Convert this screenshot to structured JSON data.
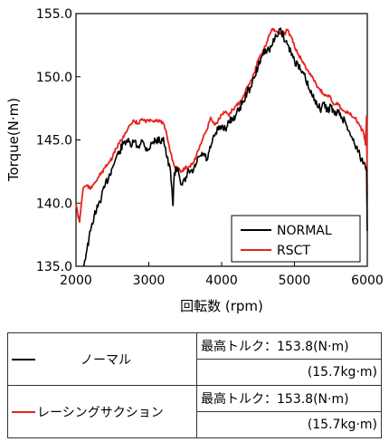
{
  "chart_data": {
    "type": "line",
    "xlabel": "回転数 (rpm)",
    "ylabel": "Torque(N·m)",
    "xlim": [
      2000,
      6000
    ],
    "ylim": [
      135.0,
      155.0
    ],
    "xticks": [
      "2000",
      "3000",
      "4000",
      "5000",
      "6000"
    ],
    "yticks": [
      "135.0",
      "140.0",
      "145.0",
      "150.0",
      "155.0"
    ],
    "legend_position": "bottom-right",
    "grid": false,
    "series": [
      {
        "name": "NORMAL",
        "color": "#000000",
        "x": [
          2100,
          2150,
          2200,
          2250,
          2300,
          2350,
          2400,
          2450,
          2500,
          2550,
          2600,
          2650,
          2700,
          2750,
          2800,
          2850,
          2900,
          2950,
          3000,
          3050,
          3100,
          3150,
          3200,
          3250,
          3300,
          3330,
          3350,
          3400,
          3450,
          3500,
          3550,
          3600,
          3650,
          3700,
          3750,
          3800,
          3850,
          3900,
          3950,
          4000,
          4050,
          4100,
          4150,
          4200,
          4250,
          4300,
          4350,
          4400,
          4450,
          4500,
          4550,
          4600,
          4650,
          4700,
          4750,
          4800,
          4850,
          4900,
          4950,
          5000,
          5050,
          5100,
          5150,
          5200,
          5250,
          5300,
          5350,
          5400,
          5450,
          5500,
          5550,
          5600,
          5650,
          5700,
          5750,
          5800,
          5850,
          5900,
          5950,
          5990,
          6000
        ],
        "y": [
          135.0,
          136.3,
          137.8,
          139.0,
          139.7,
          140.5,
          141.4,
          142.1,
          142.8,
          143.6,
          144.1,
          144.7,
          145.0,
          144.5,
          144.9,
          144.4,
          145.0,
          144.4,
          144.3,
          144.8,
          145.0,
          144.9,
          145.2,
          143.6,
          142.4,
          139.8,
          142.4,
          142.8,
          141.5,
          141.7,
          142.6,
          142.4,
          143.1,
          143.7,
          143.9,
          143.4,
          144.4,
          145.3,
          145.8,
          146.1,
          145.9,
          146.4,
          146.7,
          147.0,
          147.6,
          148.0,
          148.8,
          149.2,
          149.9,
          150.8,
          151.6,
          152.2,
          152.1,
          152.6,
          153.2,
          153.8,
          153.2,
          152.6,
          152.0,
          151.3,
          150.9,
          150.3,
          149.9,
          149.0,
          148.4,
          148.1,
          147.4,
          147.9,
          147.3,
          147.7,
          147.0,
          147.2,
          146.8,
          146.4,
          145.7,
          145.0,
          144.5,
          143.7,
          143.2,
          142.8,
          137.8
        ]
      },
      {
        "name": "RSCT",
        "color": "#e8231f",
        "x": [
          2000,
          2025,
          2050,
          2075,
          2100,
          2150,
          2200,
          2250,
          2300,
          2350,
          2400,
          2450,
          2500,
          2550,
          2600,
          2650,
          2700,
          2750,
          2800,
          2850,
          2900,
          2950,
          3000,
          3050,
          3100,
          3150,
          3200,
          3250,
          3300,
          3350,
          3400,
          3450,
          3500,
          3550,
          3600,
          3650,
          3700,
          3750,
          3800,
          3850,
          3900,
          3950,
          4000,
          4050,
          4100,
          4150,
          4200,
          4250,
          4300,
          4350,
          4400,
          4450,
          4500,
          4550,
          4600,
          4650,
          4700,
          4750,
          4800,
          4850,
          4900,
          4950,
          5000,
          5050,
          5100,
          5150,
          5200,
          5250,
          5300,
          5350,
          5400,
          5450,
          5500,
          5550,
          5600,
          5650,
          5700,
          5750,
          5800,
          5850,
          5900,
          5950,
          5975,
          5990,
          6000
        ],
        "y": [
          140.0,
          139.1,
          138.5,
          140.0,
          141.2,
          141.4,
          141.1,
          141.6,
          142.0,
          142.4,
          142.8,
          143.2,
          143.6,
          144.3,
          144.8,
          145.3,
          145.7,
          146.2,
          146.5,
          146.3,
          146.6,
          146.5,
          146.5,
          146.5,
          146.6,
          146.5,
          146.3,
          145.3,
          144.0,
          142.9,
          142.7,
          142.5,
          142.8,
          142.9,
          143.1,
          143.7,
          144.5,
          145.3,
          145.8,
          146.8,
          146.2,
          146.5,
          147.0,
          147.2,
          146.9,
          147.4,
          147.7,
          148.0,
          148.5,
          149.2,
          149.7,
          150.3,
          151.3,
          151.8,
          152.4,
          153.3,
          153.8,
          153.6,
          153.4,
          153.3,
          153.7,
          153.2,
          152.4,
          151.8,
          151.3,
          150.8,
          150.3,
          150.0,
          149.4,
          149.0,
          148.6,
          148.5,
          148.3,
          147.8,
          147.9,
          147.4,
          147.2,
          147.1,
          146.8,
          146.6,
          146.1,
          145.5,
          144.6,
          146.9,
          140.5
        ]
      }
    ]
  },
  "spec_table": [
    {
      "series": "NORMAL",
      "color": "#000000",
      "name": "ノーマル",
      "max_torque": "最高トルク：153.8(N·m)",
      "max_torque_kg": "(15.7kg·m)"
    },
    {
      "series": "RSCT",
      "color": "#e8231f",
      "name": "レーシングサクション",
      "max_torque": "最高トルク：153.8(N·m)",
      "max_torque_kg": "(15.7kg·m)"
    }
  ]
}
